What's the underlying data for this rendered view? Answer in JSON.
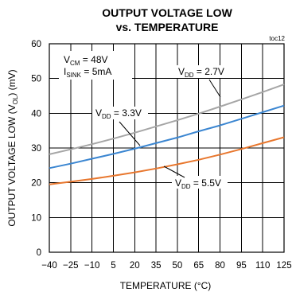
{
  "chart_data": {
    "type": "line",
    "title": "OUTPUT VOLTAGE LOW",
    "subtitle": "vs. TEMPERATURE",
    "tag": "toc12",
    "xlabel": "TEMPERATURE (°C)",
    "ylabel": "OUTPUT VOLTAGE LOW (V",
    "ylabel_sub": "OL",
    "ylabel_end": ") (mV)",
    "xlim": [
      -40,
      125
    ],
    "ylim": [
      0,
      60
    ],
    "x_ticks": [
      "-40",
      "-25",
      "-10",
      "5",
      "20",
      "35",
      "50",
      "65",
      "80",
      "95",
      "110",
      "125"
    ],
    "y_ticks": [
      "0",
      "10",
      "20",
      "30",
      "40",
      "50",
      "60"
    ],
    "grid": true,
    "conditions": {
      "vcm_main": "V",
      "vcm_sub": "CM",
      "vcm_value": " = 48V",
      "isink_main": "I",
      "isink_sub": "SINK",
      "isink_value": " = 5mA"
    },
    "series": [
      {
        "name": "V_DD = 2.7V",
        "label_main": "V",
        "label_sub": "DD",
        "label_value": " = 2.7V",
        "color": "#a6a6a6",
        "x": [
          -40,
          -25,
          -10,
          5,
          20,
          35,
          50,
          65,
          80,
          95,
          110,
          125
        ],
        "values": [
          28.2,
          29.6,
          31.1,
          32.7,
          34.4,
          36.2,
          38.0,
          39.9,
          41.9,
          44.0,
          46.1,
          48.3
        ]
      },
      {
        "name": "V_DD = 3.3V",
        "label_main": "V",
        "label_sub": "DD",
        "label_value": " = 3.3V",
        "color": "#3b86d1",
        "x": [
          -40,
          -25,
          -10,
          5,
          20,
          35,
          50,
          65,
          80,
          95,
          110,
          125
        ],
        "values": [
          24.2,
          25.5,
          26.9,
          28.3,
          29.8,
          31.4,
          33.0,
          34.8,
          36.5,
          38.4,
          40.3,
          42.2
        ]
      },
      {
        "name": "V_DD = 5.5V",
        "label_main": "V",
        "label_sub": "DD",
        "label_value": " = 5.5V",
        "color": "#e8772e",
        "x": [
          -40,
          -25,
          -10,
          5,
          20,
          35,
          50,
          65,
          80,
          95,
          110,
          125
        ],
        "values": [
          19.5,
          20.3,
          21.1,
          22.0,
          23.0,
          24.1,
          25.3,
          26.6,
          28.1,
          29.7,
          31.4,
          33.1
        ]
      }
    ]
  }
}
